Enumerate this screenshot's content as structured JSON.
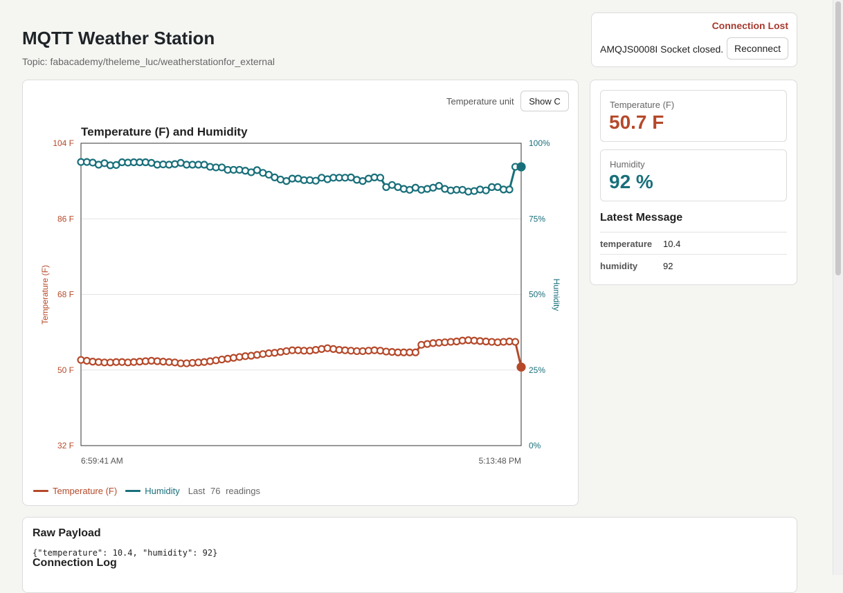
{
  "header": {
    "title": "MQTT Weather Station",
    "topic": "Topic: fabacademy/theleme_luc/weatherstationfor_external"
  },
  "connection": {
    "status": "Connection Lost",
    "message": "AMQJS0008I Socket closed.",
    "reconnect_label": "Reconnect"
  },
  "controls": {
    "unit_label": "Temperature unit",
    "unit_button": "Show C"
  },
  "legend": {
    "temperature": "Temperature (F)",
    "humidity": "Humidity",
    "readings_prefix": "Last",
    "readings_count": "76",
    "readings_suffix": "readings"
  },
  "stats": {
    "temperature_label": "Temperature (F)",
    "temperature_value": "50.7 F",
    "humidity_label": "Humidity",
    "humidity_value": "92 %"
  },
  "latest_message": {
    "title": "Latest Message",
    "rows": [
      {
        "key": "temperature",
        "value": "10.4"
      },
      {
        "key": "humidity",
        "value": "92"
      }
    ]
  },
  "raw": {
    "title": "Raw Payload",
    "payload": "{\"temperature\": 10.4, \"humidity\": 92}",
    "log_title": "Connection Log"
  },
  "colors": {
    "temperature": "#b5492a",
    "humidity": "#186f7a",
    "alert": "#a63a2e"
  },
  "chart_data": {
    "type": "line",
    "title": "Temperature (F) and Humidity",
    "ylabel": "Temperature (F)",
    "y2label": "Humidity",
    "ylim": [
      32,
      104
    ],
    "y2lim": [
      0,
      100
    ],
    "yticks": [
      "32 F",
      "50 F",
      "68 F",
      "86 F",
      "104 F"
    ],
    "y2ticks": [
      "0%",
      "25%",
      "50%",
      "75%",
      "100%"
    ],
    "x_start_label": "6:59:41 AM",
    "x_end_label": "5:13:48 PM",
    "grid": true,
    "series": [
      {
        "name": "Temperature (F)",
        "axis": "left",
        "values": [
          52.4,
          52.2,
          52.0,
          51.9,
          51.8,
          51.8,
          51.9,
          51.9,
          51.8,
          51.9,
          52.0,
          52.1,
          52.2,
          52.1,
          52.0,
          51.9,
          51.8,
          51.6,
          51.6,
          51.7,
          51.8,
          51.9,
          52.1,
          52.3,
          52.5,
          52.7,
          52.9,
          53.1,
          53.3,
          53.4,
          53.6,
          53.8,
          54.0,
          54.1,
          54.3,
          54.5,
          54.7,
          54.7,
          54.6,
          54.6,
          54.8,
          55.0,
          55.2,
          55.0,
          54.8,
          54.7,
          54.6,
          54.5,
          54.5,
          54.6,
          54.7,
          54.6,
          54.4,
          54.3,
          54.2,
          54.2,
          54.2,
          54.2,
          56.0,
          56.2,
          56.4,
          56.5,
          56.6,
          56.7,
          56.8,
          57.0,
          57.1,
          57.0,
          56.9,
          56.8,
          56.7,
          56.6,
          56.7,
          56.8,
          56.7,
          50.7
        ]
      },
      {
        "name": "Humidity",
        "axis": "right",
        "values": [
          93.8,
          93.8,
          93.6,
          92.9,
          93.4,
          92.7,
          92.8,
          93.7,
          93.6,
          93.7,
          93.7,
          93.7,
          93.5,
          92.9,
          93.0,
          92.9,
          93.1,
          93.5,
          92.9,
          92.9,
          92.9,
          92.9,
          92.2,
          92.0,
          92.0,
          91.2,
          91.2,
          91.2,
          90.9,
          90.4,
          91.1,
          90.2,
          89.6,
          88.7,
          88.0,
          87.5,
          88.3,
          88.3,
          87.8,
          87.8,
          87.6,
          88.6,
          88.1,
          88.6,
          88.6,
          88.6,
          88.7,
          87.9,
          87.5,
          88.3,
          88.7,
          88.6,
          85.5,
          86.2,
          85.5,
          84.9,
          84.6,
          85.3,
          84.6,
          84.9,
          85.3,
          85.9,
          84.9,
          84.4,
          84.6,
          84.6,
          84.0,
          84.2,
          84.7,
          84.4,
          85.5,
          85.5,
          84.7,
          84.7,
          92.2,
          92.2
        ]
      }
    ]
  }
}
